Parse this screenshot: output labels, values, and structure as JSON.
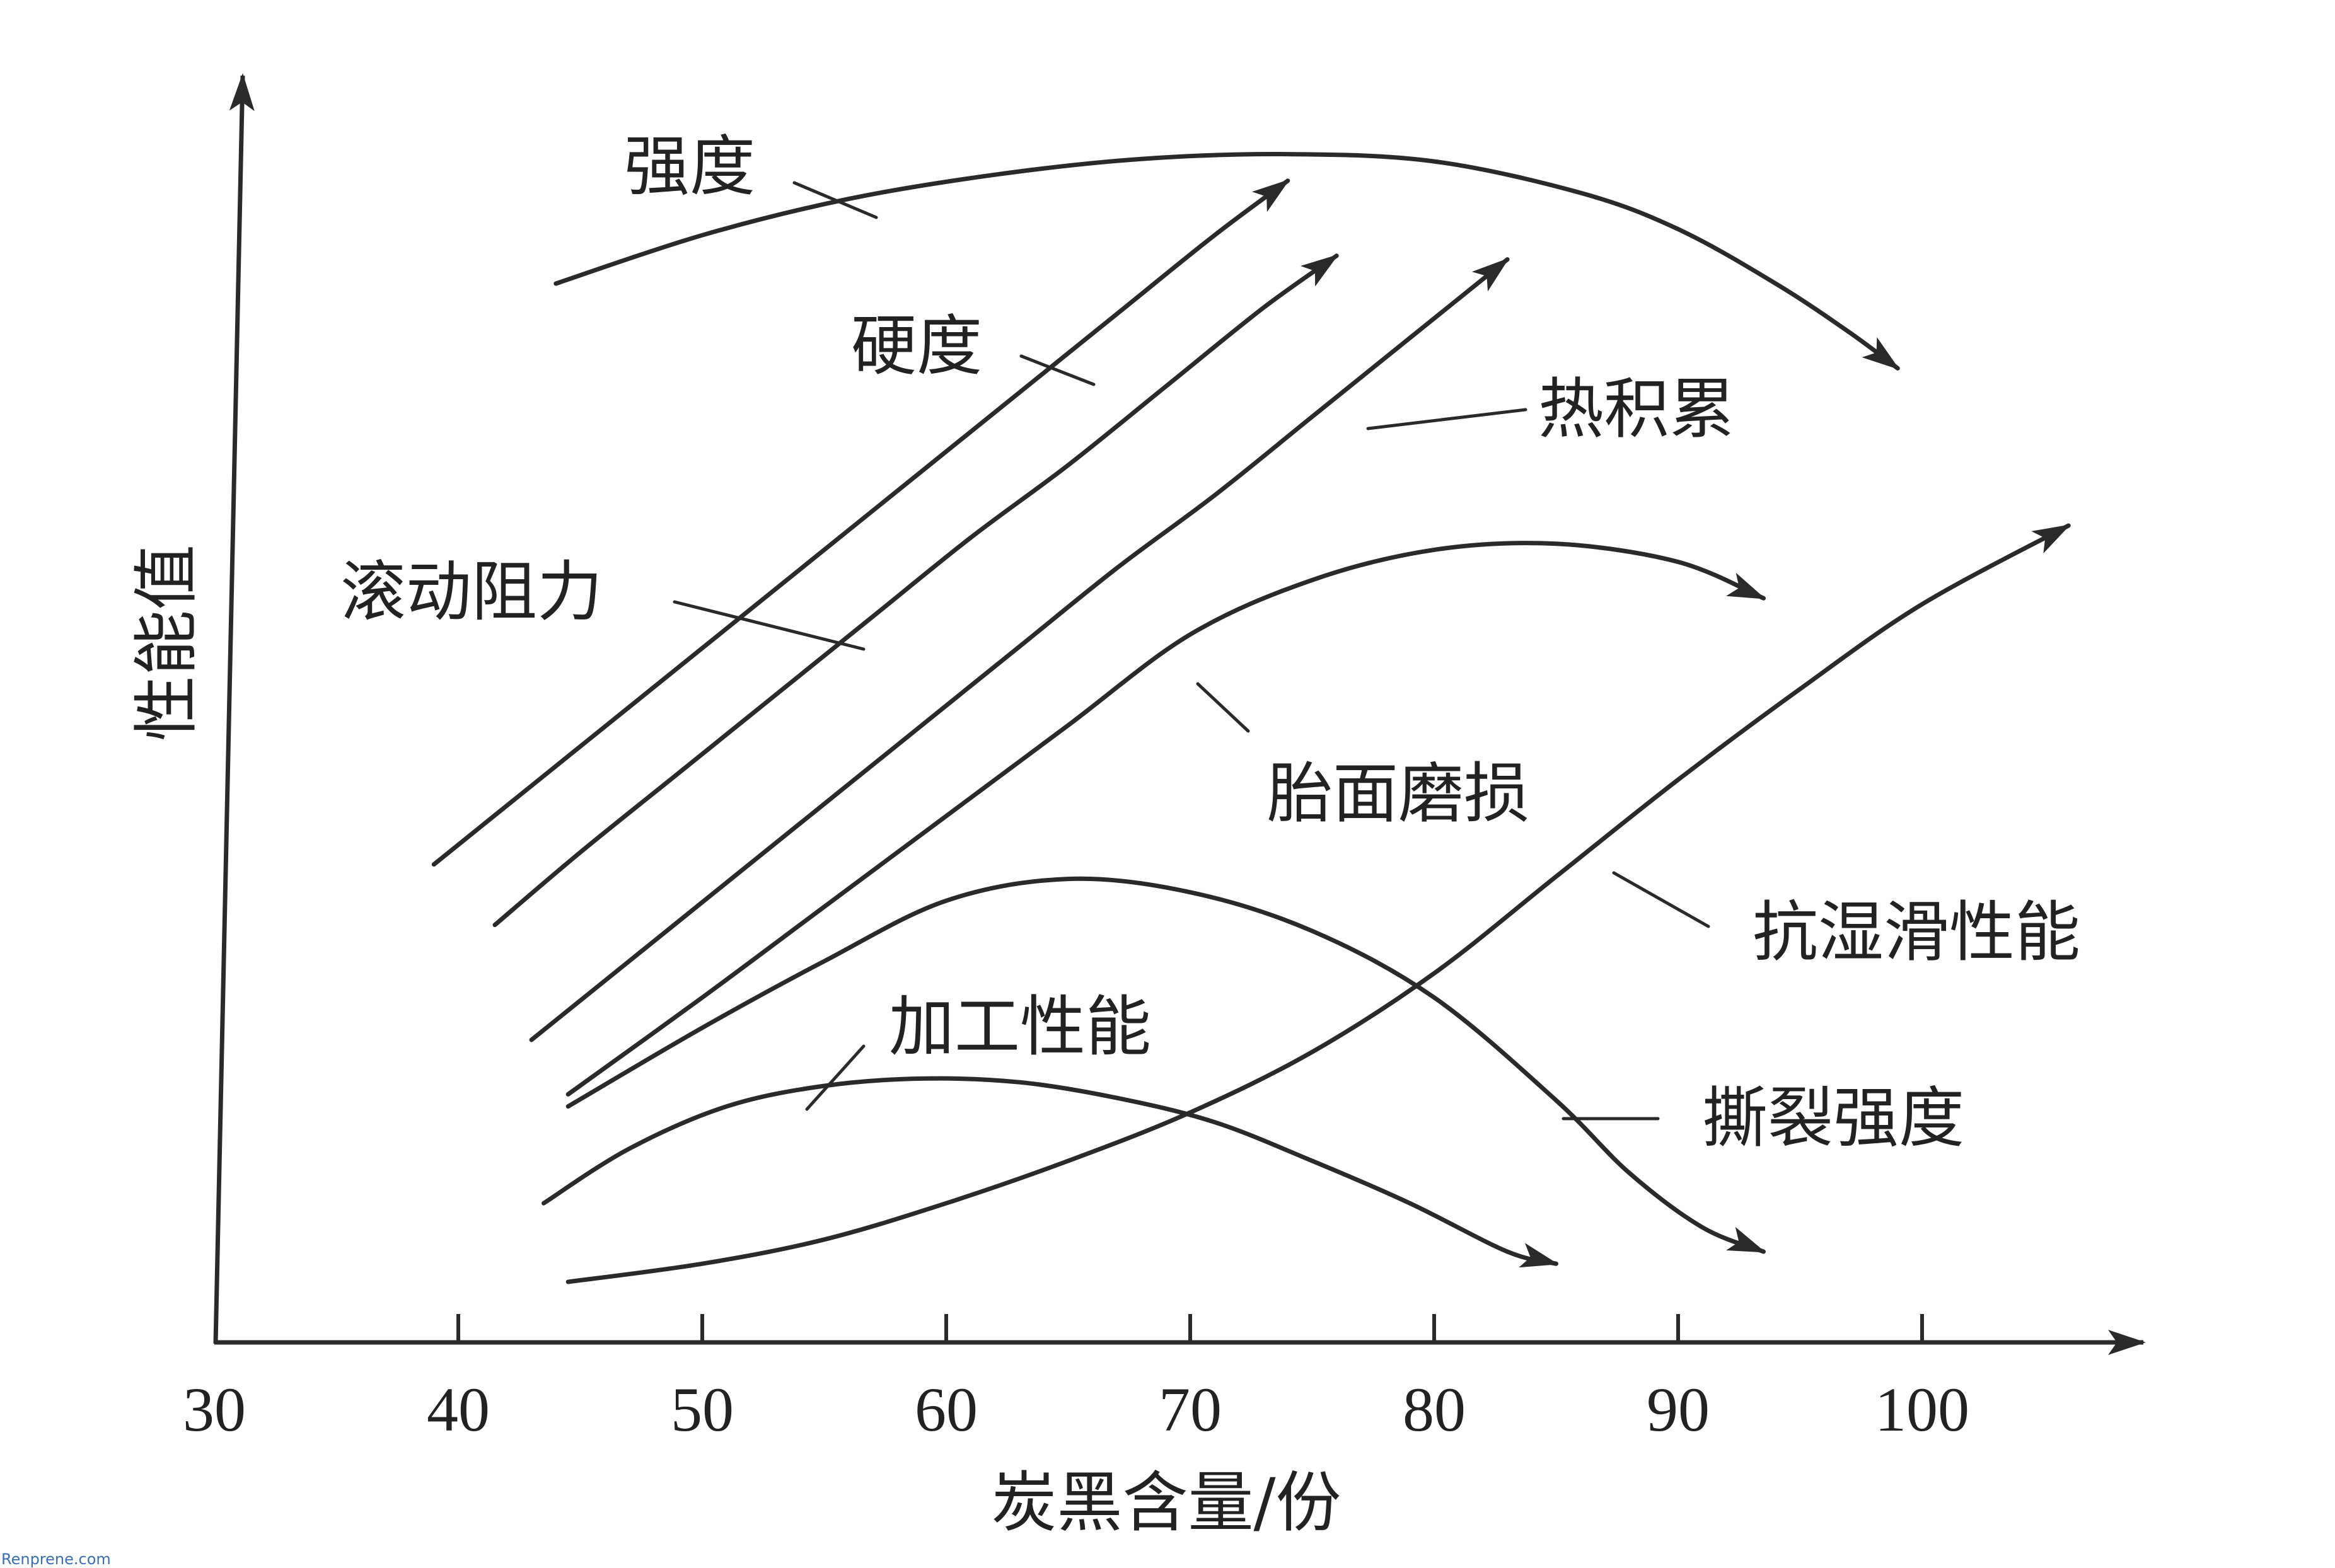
{
  "chart_data": {
    "type": "line",
    "xlabel": "炭黑含量/份",
    "ylabel": "性能值",
    "xlim": [
      30,
      108
    ],
    "xticks": [
      30,
      40,
      50,
      60,
      70,
      80,
      90,
      100
    ],
    "ylim": [
      0,
      100
    ],
    "y_tick_labels": false,
    "grid": false,
    "legend": "none",
    "series": [
      {
        "name": "强度",
        "x": [
          44,
          50,
          56,
          62,
          68,
          74,
          80,
          86,
          90,
          94,
          97,
          99
        ],
        "y": [
          87.5,
          91.5,
          94.5,
          96.5,
          97.8,
          98.2,
          97.6,
          95,
          92,
          87.5,
          83.5,
          80.5
        ],
        "arrow": true
      },
      {
        "name": "硬度",
        "x": [
          39,
          43,
          47,
          51,
          55,
          59,
          63,
          67,
          71,
          74
        ],
        "y": [
          39.5,
          46,
          52.5,
          59,
          65.5,
          72,
          78.5,
          85,
          91.5,
          96
        ],
        "arrow": true
      },
      {
        "name": "滚动阻力",
        "x": [
          41.5,
          45,
          49,
          53,
          57,
          61,
          65,
          69,
          73,
          76
        ],
        "y": [
          34.5,
          40.5,
          47,
          53.5,
          60,
          66.5,
          72.5,
          79,
          85.5,
          89.8
        ],
        "arrow": true
      },
      {
        "name": "热积累",
        "x": [
          43,
          47,
          51,
          55,
          59,
          63,
          67,
          71,
          75,
          79,
          83
        ],
        "y": [
          25,
          31.5,
          38,
          44.5,
          51,
          57.5,
          64,
          70,
          76.5,
          83,
          89.5
        ],
        "arrow": true
      },
      {
        "name": "胎面磨损",
        "x": [
          44.5,
          50,
          55,
          60,
          65,
          70,
          75,
          80,
          85,
          90,
          93.5
        ],
        "y": [
          20.5,
          28.5,
          36,
          43.5,
          51,
          58.5,
          63,
          65.5,
          66,
          64.5,
          61.5
        ],
        "arrow": true
      },
      {
        "name": "抗湿滑性能",
        "x": [
          44.5,
          50,
          55,
          60,
          65,
          70,
          75,
          80,
          85,
          90,
          95,
          100,
          106
        ],
        "y": [
          5,
          6.5,
          8.5,
          11.5,
          15,
          19,
          24,
          30.5,
          38.5,
          46.5,
          54,
          61,
          67.5
        ],
        "arrow": true
      },
      {
        "name": "加工性能",
        "x": [
          43.5,
          47,
          51,
          55,
          59,
          63,
          67,
          71,
          75,
          79,
          83,
          85
        ],
        "y": [
          11.5,
          16,
          19.5,
          21.2,
          21.8,
          21.5,
          20.2,
          18.2,
          15,
          11.5,
          7.5,
          6.5
        ],
        "arrow": true
      },
      {
        "name": "撕裂强度",
        "x": [
          44.5,
          50,
          55,
          60,
          65,
          70,
          75,
          80,
          85,
          88,
          91,
          93.5
        ],
        "y": [
          19.5,
          26,
          31.5,
          36.5,
          38.3,
          37.2,
          34,
          28.5,
          20,
          14,
          9.5,
          7.5
        ],
        "arrow": true
      }
    ]
  },
  "labels": {
    "strength": "强度",
    "hardness": "硬度",
    "heat_buildup": "热积累",
    "rolling_resistance": "滚动阻力",
    "tread_wear": "胎面磨损",
    "wet_skid": "抗湿滑性能",
    "processability": "加工性能",
    "tear_strength": "撕裂强度"
  },
  "watermark": "Renprene.com"
}
